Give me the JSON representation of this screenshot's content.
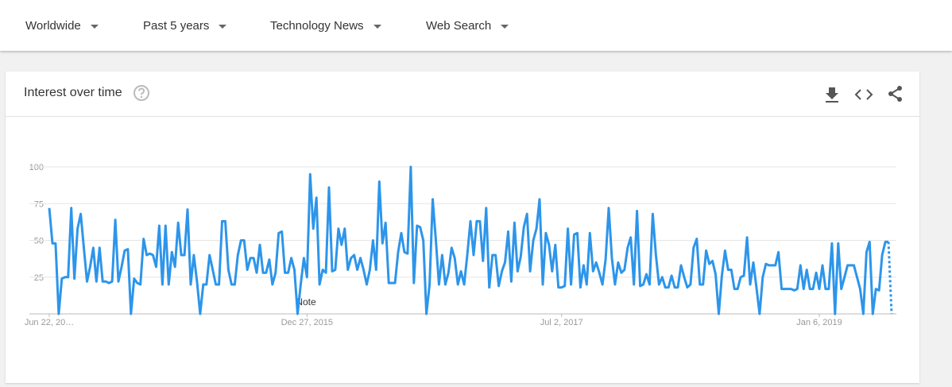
{
  "filters": [
    "Worldwide",
    "Past 5 years",
    "Technology News",
    "Web Search"
  ],
  "card_title": "Interest over time",
  "annotation": "Note",
  "chart_data": {
    "type": "line",
    "color": "#2d95ea",
    "last_segment_partial": true,
    "grid": true,
    "ylim": [
      0,
      100
    ],
    "yticks": [
      25,
      50,
      75,
      100
    ],
    "categories": [
      "Jun 22, 20…",
      null,
      null,
      null,
      null,
      null,
      null,
      null,
      null,
      null,
      null,
      null,
      null,
      null,
      null,
      null,
      null,
      null,
      null,
      null,
      null,
      null,
      null,
      null,
      null,
      null,
      null,
      null,
      null,
      null,
      null,
      null,
      null,
      null,
      null,
      null,
      null,
      null,
      null,
      null,
      null,
      null,
      null,
      null,
      null,
      null,
      null,
      null,
      null,
      null,
      null,
      null,
      null,
      null,
      null,
      null,
      null,
      null,
      null,
      null,
      null,
      null,
      null,
      null,
      null,
      null,
      null,
      null,
      null,
      null,
      null,
      null,
      null,
      null,
      null,
      null,
      null,
      null,
      null,
      null,
      null,
      null,
      "Dec 27, 2015",
      null,
      null,
      null,
      null,
      null,
      null,
      null,
      null,
      null,
      null,
      null,
      null,
      null,
      null,
      null,
      null,
      null,
      null,
      null,
      null,
      null,
      null,
      null,
      null,
      null,
      null,
      null,
      null,
      null,
      null,
      null,
      null,
      null,
      null,
      null,
      null,
      null,
      null,
      null,
      null,
      null,
      null,
      null,
      null,
      null,
      null,
      null,
      null,
      null,
      null,
      null,
      null,
      null,
      null,
      null,
      null,
      null,
      null,
      null,
      null,
      null,
      null,
      null,
      null,
      null,
      null,
      null,
      null,
      null,
      null,
      null,
      null,
      null,
      null,
      null,
      null,
      null,
      null,
      null,
      null,
      "Jul 2, 2017",
      null,
      null,
      null,
      null,
      null,
      null,
      null,
      null,
      null,
      null,
      null,
      null,
      null,
      null,
      null,
      null,
      null,
      null,
      null,
      null,
      null,
      null,
      null,
      null,
      null,
      null,
      null,
      null,
      null,
      null,
      null,
      null,
      null,
      null,
      null,
      null,
      null,
      null,
      null,
      null,
      null,
      null,
      null,
      null,
      null,
      null,
      null,
      null,
      null,
      null,
      null,
      null,
      null,
      null,
      null,
      null,
      null,
      null,
      null,
      null,
      null,
      null,
      null,
      null,
      null,
      null,
      null,
      null,
      null,
      null,
      null,
      null,
      null,
      null,
      null,
      null,
      null,
      null,
      null,
      null,
      null,
      "Jan 6, 2019",
      null,
      null,
      null,
      null,
      null,
      null,
      null,
      null,
      null,
      null,
      null,
      null,
      null,
      null,
      null,
      null,
      null,
      null,
      null,
      null,
      null,
      null,
      null
    ],
    "values": [
      72,
      48,
      48,
      0,
      24,
      25,
      25,
      72,
      24,
      58,
      68,
      45,
      22,
      32,
      45,
      22,
      45,
      22,
      22,
      21,
      22,
      64,
      22,
      32,
      43,
      44,
      0,
      24,
      21,
      20,
      51,
      40,
      41,
      40,
      32,
      60,
      20,
      60,
      20,
      42,
      32,
      62,
      40,
      40,
      71,
      20,
      40,
      22,
      0,
      20,
      20,
      40,
      30,
      20,
      20,
      63,
      63,
      30,
      20,
      20,
      40,
      50,
      50,
      30,
      38,
      38,
      28,
      47,
      28,
      28,
      37,
      20,
      28,
      55,
      56,
      28,
      28,
      38,
      30,
      0,
      20,
      38,
      25,
      95,
      58,
      79,
      20,
      30,
      28,
      86,
      29,
      30,
      58,
      47,
      58,
      30,
      38,
      40,
      30,
      38,
      30,
      20,
      30,
      50,
      30,
      90,
      48,
      62,
      21,
      21,
      21,
      42,
      55,
      42,
      41,
      100,
      21,
      60,
      59,
      50,
      0,
      20,
      78,
      50,
      20,
      40,
      20,
      28,
      45,
      38,
      20,
      29,
      20,
      40,
      63,
      40,
      63,
      63,
      36,
      72,
      18,
      40,
      40,
      19,
      29,
      35,
      56,
      22,
      62,
      29,
      39,
      59,
      68,
      29,
      50,
      58,
      78,
      20,
      55,
      47,
      29,
      47,
      18,
      18,
      19,
      58,
      20,
      54,
      55,
      18,
      33,
      20,
      55,
      29,
      35,
      28,
      20,
      37,
      72,
      38,
      20,
      35,
      28,
      30,
      45,
      52,
      20,
      70,
      19,
      20,
      27,
      20,
      68,
      40,
      20,
      25,
      18,
      18,
      26,
      18,
      18,
      33,
      25,
      18,
      20,
      45,
      51,
      20,
      20,
      43,
      34,
      36,
      27,
      0,
      26,
      43,
      30,
      30,
      17,
      17,
      25,
      26,
      52,
      20,
      35,
      18,
      0,
      25,
      34,
      33,
      33,
      33,
      42,
      17,
      17,
      17,
      17,
      16,
      17,
      33,
      17,
      30,
      17,
      17,
      28,
      17,
      33,
      17,
      17,
      48,
      0,
      48,
      17,
      25,
      33,
      33,
      33,
      25,
      17,
      0,
      42,
      49,
      0,
      17,
      16,
      40,
      49,
      49,
      0
    ]
  }
}
